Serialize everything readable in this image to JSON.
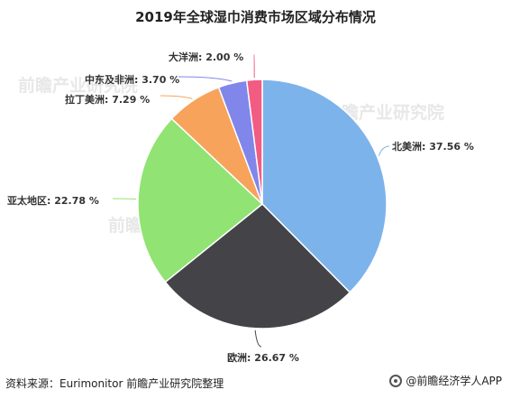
{
  "chart_data": {
    "type": "pie",
    "title": "2019年全球湿巾消费市场区域分布情况",
    "slices": [
      {
        "label": "北美洲",
        "value": 37.56,
        "display": "北美洲: 37.56 %",
        "color": "#7db3eb"
      },
      {
        "label": "欧洲",
        "value": 26.67,
        "display": "欧洲: 26.67 %",
        "color": "#434348"
      },
      {
        "label": "亚太地区",
        "value": 22.78,
        "display": "亚太地区: 22.78 %",
        "color": "#91e373"
      },
      {
        "label": "拉丁美洲",
        "value": 7.29,
        "display": "拉丁美洲: 7.29 %",
        "color": "#f7a35b"
      },
      {
        "label": "中东及非洲",
        "value": 3.7,
        "display": "中东及非洲: 3.70 %",
        "color": "#8186ea"
      },
      {
        "label": "大洋洲",
        "value": 2.0,
        "display": "大洋洲: 2.00 %",
        "color": "#f25b82"
      }
    ]
  },
  "footer": {
    "source": "资料来源：Eurimonitor 前瞻产业研究院整理",
    "brand": "@前瞻经济学人APP"
  },
  "watermark": {
    "text": "前瞻产业研究院"
  }
}
